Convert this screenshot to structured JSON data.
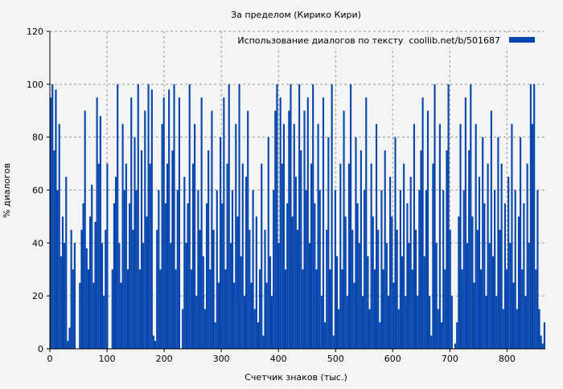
{
  "chart_data": {
    "type": "bar",
    "title": "За пределом (Кирико Кири)",
    "xlabel": "Счетчик знаков (тыс.)",
    "ylabel": "% диалогов",
    "xlim": [
      0,
      867
    ],
    "ylim": [
      0,
      120
    ],
    "xticks": [
      0,
      100,
      200,
      300,
      400,
      500,
      600,
      700,
      800
    ],
    "yticks": [
      0,
      20,
      40,
      60,
      80,
      100,
      120
    ],
    "grid": true,
    "legend": {
      "position": "top-right",
      "entries": [
        "Использование диалогов по тексту  coollib.net/b/501687"
      ]
    },
    "color": "#0645ad",
    "x_step": 3,
    "series": [
      {
        "name": "Использование диалогов по тексту  coollib.net/b/501687",
        "values": [
          95,
          100,
          75,
          98,
          60,
          85,
          35,
          50,
          40,
          65,
          3,
          8,
          45,
          30,
          40,
          0,
          0,
          25,
          45,
          55,
          90,
          38,
          30,
          50,
          62,
          25,
          48,
          95,
          70,
          88,
          40,
          20,
          45,
          70,
          0,
          0,
          30,
          55,
          65,
          100,
          40,
          25,
          85,
          60,
          70,
          30,
          55,
          95,
          45,
          80,
          60,
          100,
          30,
          75,
          40,
          90,
          50,
          100,
          70,
          98,
          5,
          3,
          45,
          60,
          30,
          85,
          95,
          55,
          70,
          98,
          40,
          75,
          100,
          30,
          60,
          95,
          0,
          15,
          65,
          40,
          55,
          100,
          30,
          70,
          85,
          20,
          60,
          45,
          95,
          35,
          15,
          55,
          75,
          30,
          90,
          45,
          10,
          60,
          25,
          80,
          55,
          95,
          30,
          70,
          100,
          40,
          60,
          25,
          85,
          50,
          100,
          35,
          70,
          20,
          65,
          90,
          45,
          25,
          60,
          15,
          50,
          10,
          30,
          70,
          5,
          45,
          25,
          80,
          35,
          20,
          60,
          90,
          100,
          40,
          95,
          70,
          85,
          30,
          55,
          90,
          100,
          50,
          85,
          65,
          45,
          100,
          75,
          30,
          90,
          60,
          95,
          40,
          70,
          100,
          55,
          30,
          85,
          60,
          20,
          95,
          10,
          45,
          80,
          30,
          100,
          5,
          60,
          35,
          15,
          70,
          30,
          90,
          50,
          20,
          70,
          100,
          45,
          25,
          80,
          55,
          40,
          75,
          20,
          60,
          95,
          35,
          15,
          70,
          50,
          30,
          85,
          45,
          10,
          60,
          30,
          75,
          40,
          20,
          65,
          50,
          25,
          80,
          45,
          15,
          60,
          35,
          70,
          20,
          55,
          40,
          65,
          30,
          85,
          45,
          20,
          60,
          75,
          95,
          35,
          60,
          90,
          20,
          5,
          70,
          100,
          40,
          15,
          85,
          10,
          60,
          30,
          75,
          100,
          45,
          20,
          0,
          2,
          10,
          50,
          85,
          30,
          60,
          95,
          40,
          75,
          100,
          50,
          25,
          85,
          45,
          65,
          30,
          80,
          55,
          20,
          70,
          40,
          90,
          35,
          60,
          20,
          80,
          45,
          70,
          15,
          55,
          30,
          65,
          40,
          85,
          25,
          60,
          15,
          50,
          80,
          30,
          55,
          20,
          70,
          40,
          100,
          85,
          100,
          30,
          60,
          15,
          5,
          2,
          10
        ]
      }
    ]
  }
}
